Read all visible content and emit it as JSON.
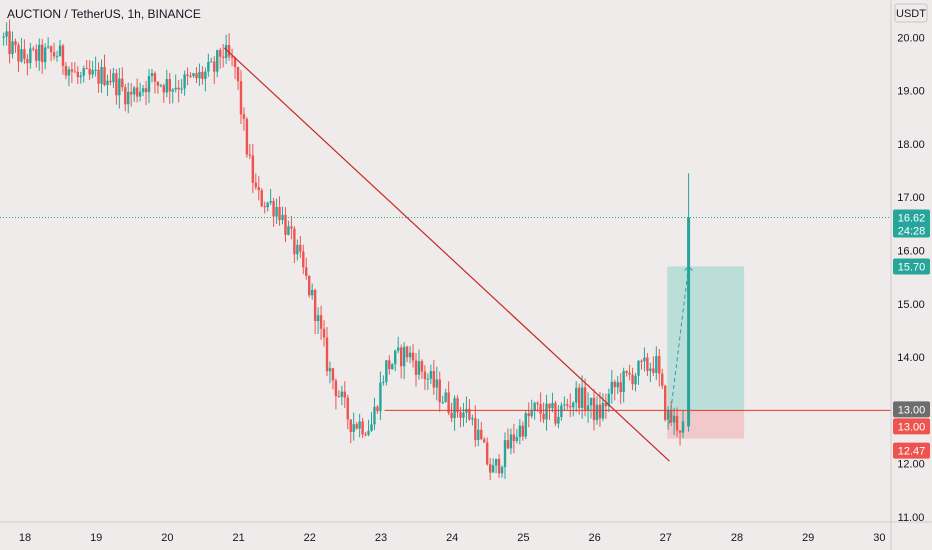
{
  "header": {
    "symbol_title": "AUCTION / TetherUS, 1h, BINANCE",
    "currency_label": "USDT"
  },
  "chart_data": {
    "type": "candlestick",
    "title": "AUCTION / TetherUS, 1h, BINANCE",
    "xlabel": "",
    "ylabel": "",
    "x_ticks": [
      "18",
      "19",
      "20",
      "21",
      "22",
      "23",
      "24",
      "25",
      "26",
      "27",
      "28",
      "29",
      "30"
    ],
    "y_ticks": [
      "11.00",
      "12.00",
      "13.00",
      "14.00",
      "15.00",
      "16.00",
      "17.00",
      "18.00",
      "19.00",
      "20.00"
    ],
    "ylim": [
      10.9,
      20.4
    ],
    "xlim": [
      17.65,
      30.1
    ],
    "grid": false,
    "price_path": [
      {
        "day": 17.7,
        "price": 20.0
      },
      {
        "day": 18.0,
        "price": 19.6
      },
      {
        "day": 18.5,
        "price": 19.7
      },
      {
        "day": 18.8,
        "price": 19.2
      },
      {
        "day": 19.2,
        "price": 19.3
      },
      {
        "day": 19.5,
        "price": 18.9
      },
      {
        "day": 19.8,
        "price": 19.2
      },
      {
        "day": 20.1,
        "price": 19.1
      },
      {
        "day": 20.4,
        "price": 19.2
      },
      {
        "day": 20.7,
        "price": 19.4
      },
      {
        "day": 20.8,
        "price": 19.75
      },
      {
        "day": 21.0,
        "price": 19.4
      },
      {
        "day": 21.1,
        "price": 18.4
      },
      {
        "day": 21.2,
        "price": 17.6
      },
      {
        "day": 21.3,
        "price": 17.0
      },
      {
        "day": 21.6,
        "price": 16.8
      },
      {
        "day": 21.9,
        "price": 15.8
      },
      {
        "day": 22.1,
        "price": 15.0
      },
      {
        "day": 22.3,
        "price": 13.8
      },
      {
        "day": 22.6,
        "price": 12.8
      },
      {
        "day": 22.9,
        "price": 12.7
      },
      {
        "day": 23.1,
        "price": 13.8
      },
      {
        "day": 23.4,
        "price": 14.1
      },
      {
        "day": 23.7,
        "price": 13.6
      },
      {
        "day": 24.0,
        "price": 13.1
      },
      {
        "day": 24.3,
        "price": 12.9
      },
      {
        "day": 24.6,
        "price": 11.8
      },
      {
        "day": 24.9,
        "price": 12.5
      },
      {
        "day": 25.2,
        "price": 13.0
      },
      {
        "day": 25.5,
        "price": 12.9
      },
      {
        "day": 25.8,
        "price": 13.3
      },
      {
        "day": 26.1,
        "price": 12.9
      },
      {
        "day": 26.3,
        "price": 13.4
      },
      {
        "day": 26.6,
        "price": 13.7
      },
      {
        "day": 26.9,
        "price": 13.9
      },
      {
        "day": 27.05,
        "price": 12.9
      },
      {
        "day": 27.25,
        "price": 12.7
      }
    ],
    "last_candle": {
      "day": 27.32,
      "open": 12.7,
      "high": 17.45,
      "low": 12.6,
      "close": 16.62
    },
    "last_price": {
      "value": "16.62",
      "countdown": "24:28"
    },
    "trendline": {
      "from": {
        "day": 20.8,
        "price": 19.8
      },
      "to": {
        "day": 27.05,
        "price": 12.05
      }
    },
    "horizontal_line": {
      "price": 13.0
    },
    "position_tool": {
      "entry": 13.0,
      "target": 15.7,
      "stop": 12.47,
      "start_day": 27.02,
      "end_day": 28.1,
      "projection_to_day": 27.32
    },
    "price_labels": [
      {
        "text": "16.62",
        "kind": "last"
      },
      {
        "text": "15.70",
        "kind": "target"
      },
      {
        "text": "13.00",
        "kind": "line"
      },
      {
        "text": "13.00",
        "kind": "entry"
      },
      {
        "text": "12.47",
        "kind": "stop"
      }
    ]
  },
  "colors": {
    "background": "#efebea",
    "up": "#26a69a",
    "down": "#ef5350",
    "trendline": "#c62828",
    "horizontal_line": "#e53935",
    "target_zone": "#b2dcd6",
    "stop_zone": "#f2c3c6",
    "axis_tag_dark": "#6d6d6d",
    "text": "#131722"
  }
}
